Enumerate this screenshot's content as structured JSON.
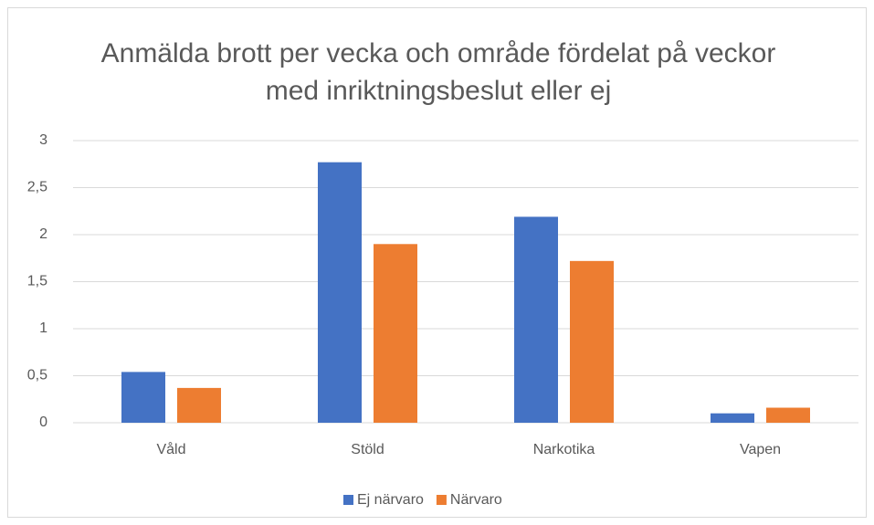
{
  "chart_data": {
    "type": "bar",
    "title": "Anmälda brott per vecka och område fördelat på veckor med inriktningsbeslut eller ej",
    "categories": [
      "Våld",
      "Stöld",
      "Narkotika",
      "Vapen"
    ],
    "series": [
      {
        "name": "Ej närvaro",
        "color": "#4472c4",
        "values": [
          0.54,
          2.77,
          2.19,
          0.1
        ]
      },
      {
        "name": "Närvaro",
        "color": "#ed7d31",
        "values": [
          0.37,
          1.9,
          1.72,
          0.16
        ]
      }
    ],
    "ylim": [
      0,
      3
    ],
    "yticks": [
      0,
      {
        "value": 0.5,
        "label": "0,5"
      },
      1,
      {
        "value": 1.5,
        "label": "1,5"
      },
      2,
      {
        "value": 2.5,
        "label": "2,5"
      },
      3
    ],
    "grid": true,
    "legend": "bottom"
  }
}
